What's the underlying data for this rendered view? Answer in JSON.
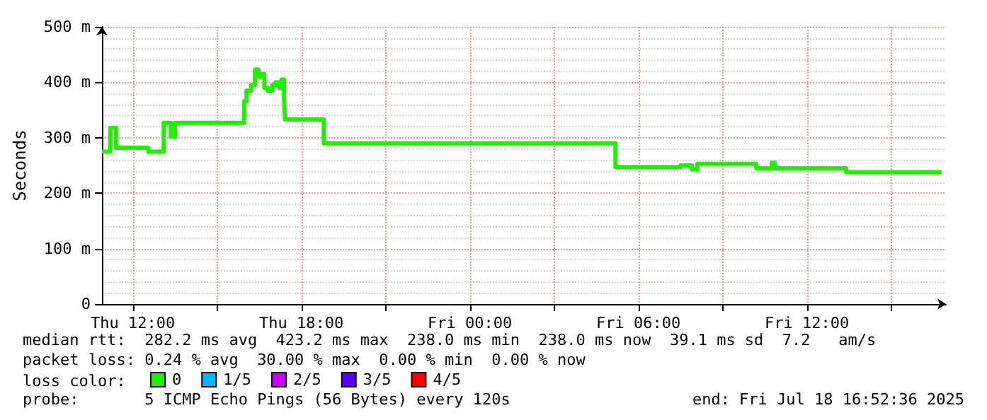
{
  "chart_data": {
    "type": "step",
    "ylabel": "Seconds",
    "legend_title": "loss color:",
    "legend": "bottom left",
    "grid": true,
    "line_style": "solid",
    "marker": "none",
    "xlim": [
      "2025-07-17T10:54",
      "2025-07-18T16:57"
    ],
    "xticks": [
      {
        "value": "2025-07-17T12:00",
        "label": "Thu 12:00"
      },
      {
        "value": "2025-07-17T15:00",
        "label": null
      },
      {
        "value": "2025-07-17T18:00",
        "label": "Thu 18:00"
      },
      {
        "value": "2025-07-17T21:00",
        "label": null
      },
      {
        "value": "2025-07-18T00:00",
        "label": "Fri 00:00"
      },
      {
        "value": "2025-07-18T03:00",
        "label": null
      },
      {
        "value": "2025-07-18T06:00",
        "label": "Fri 06:00"
      },
      {
        "value": "2025-07-18T09:00",
        "label": null
      },
      {
        "value": "2025-07-18T12:00",
        "label": "Fri 12:00"
      },
      {
        "value": "2025-07-18T15:00",
        "label": null
      }
    ],
    "ylim": [
      0,
      500
    ],
    "yticks": [
      0,
      {
        "value": 100,
        "label": "100 m"
      },
      {
        "value": 200,
        "label": "200 m"
      },
      {
        "value": 300,
        "label": "300 m"
      },
      {
        "value": 400,
        "label": "400 m"
      },
      {
        "value": 500,
        "label": "500 m"
      }
    ],
    "series": [
      {
        "name": "0",
        "color": "#20f000",
        "x": [
          "2025-07-17T10:54",
          "2025-07-17T11:12",
          "2025-07-17T11:24",
          "2025-07-17T12:33",
          "2025-07-17T13:06",
          "2025-07-17T13:21",
          "2025-07-17T13:30",
          "2025-07-17T15:54",
          "2025-07-17T15:58",
          "2025-07-17T16:03",
          "2025-07-17T16:13",
          "2025-07-17T16:21",
          "2025-07-17T16:28",
          "2025-07-17T16:33",
          "2025-07-17T16:41",
          "2025-07-17T16:48",
          "2025-07-17T16:58",
          "2025-07-17T17:05",
          "2025-07-17T17:13",
          "2025-07-17T17:18",
          "2025-07-17T17:23",
          "2025-07-17T17:25",
          "2025-07-17T18:48",
          "2025-07-18T05:11",
          "2025-07-18T07:30",
          "2025-07-18T07:54",
          "2025-07-18T08:06",
          "2025-07-18T10:12",
          "2025-07-18T10:45",
          "2025-07-18T10:51",
          "2025-07-18T13:24",
          "2025-07-18T16:48"
        ],
        "values": [
          275,
          318,
          282,
          275,
          327,
          302,
          327,
          327,
          366,
          385,
          395,
          423,
          410,
          415,
          390,
          385,
          395,
          400,
          390,
          405,
          370,
          333,
          290,
          247,
          250,
          243,
          253,
          245,
          255,
          245,
          238,
          238
        ]
      },
      {
        "name": "1/5",
        "color": "#00b8ff"
      },
      {
        "name": "2/5",
        "color": "#cc00ff"
      },
      {
        "name": "3/5",
        "color": "#5500ff"
      },
      {
        "name": "4/5",
        "color": "#ff0000"
      }
    ],
    "annotations": [
      "median rtt:  282.2 ms avg  423.2 ms max  238.0 ms min  238.0 ms now  39.1 ms sd  7.2   am/s",
      "packet loss: 0.24 % avg  30.00 % max  0.00 % min  0.00 % now",
      "probe:       5 ICMP Echo Pings (56 Bytes) every 120s",
      "end: Fri Jul 18 16:52:36 2025"
    ]
  }
}
